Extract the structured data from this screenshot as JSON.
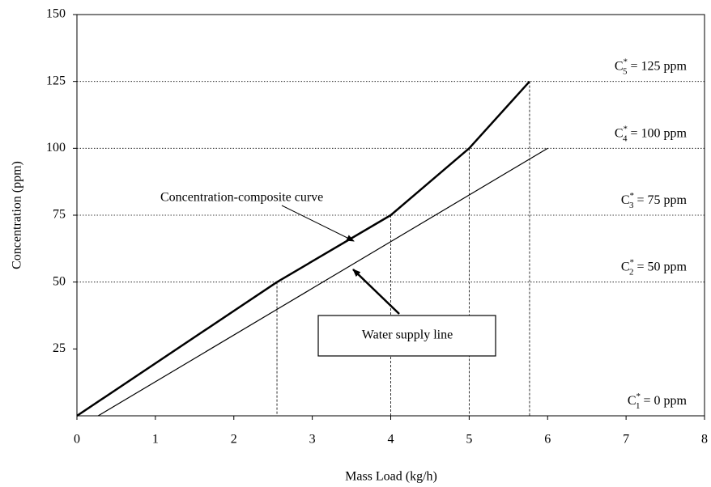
{
  "chart_data": {
    "type": "line",
    "x_label": "Mass Load (kg/h)",
    "y_label": "Concentration (ppm)",
    "xlim": [
      0,
      8
    ],
    "ylim": [
      0,
      150
    ],
    "xticks": [
      0,
      1,
      2,
      3,
      4,
      5,
      6,
      7,
      8
    ],
    "yticks": [
      25,
      50,
      75,
      100,
      125,
      150
    ],
    "series": [
      {
        "name": "Concentration-composite curve",
        "color": "#000000",
        "width": 2.5,
        "x": [
          0,
          2.55,
          4.0,
          5.0,
          5.77
        ],
        "values": [
          0,
          50,
          75,
          100,
          125
        ]
      },
      {
        "name": "Water supply line",
        "color": "#000000",
        "width": 1.2,
        "x": [
          0.27,
          6.0
        ],
        "values": [
          0,
          100
        ]
      }
    ],
    "levels": [
      {
        "base": "C",
        "sup": "*",
        "sub": "5",
        "rest": " = 125 ppm",
        "value": 125
      },
      {
        "base": "C",
        "sup": "*",
        "sub": "4",
        "rest": " = 100 ppm",
        "value": 100
      },
      {
        "base": "C",
        "sup": "*",
        "sub": "3",
        "rest": " = 75 ppm",
        "value": 75
      },
      {
        "base": "C",
        "sup": "*",
        "sub": "2",
        "rest": " = 50 ppm",
        "value": 50
      },
      {
        "base": "C",
        "sup": "*",
        "sub": "1",
        "rest": " = 0 ppm",
        "value": 0
      }
    ]
  }
}
